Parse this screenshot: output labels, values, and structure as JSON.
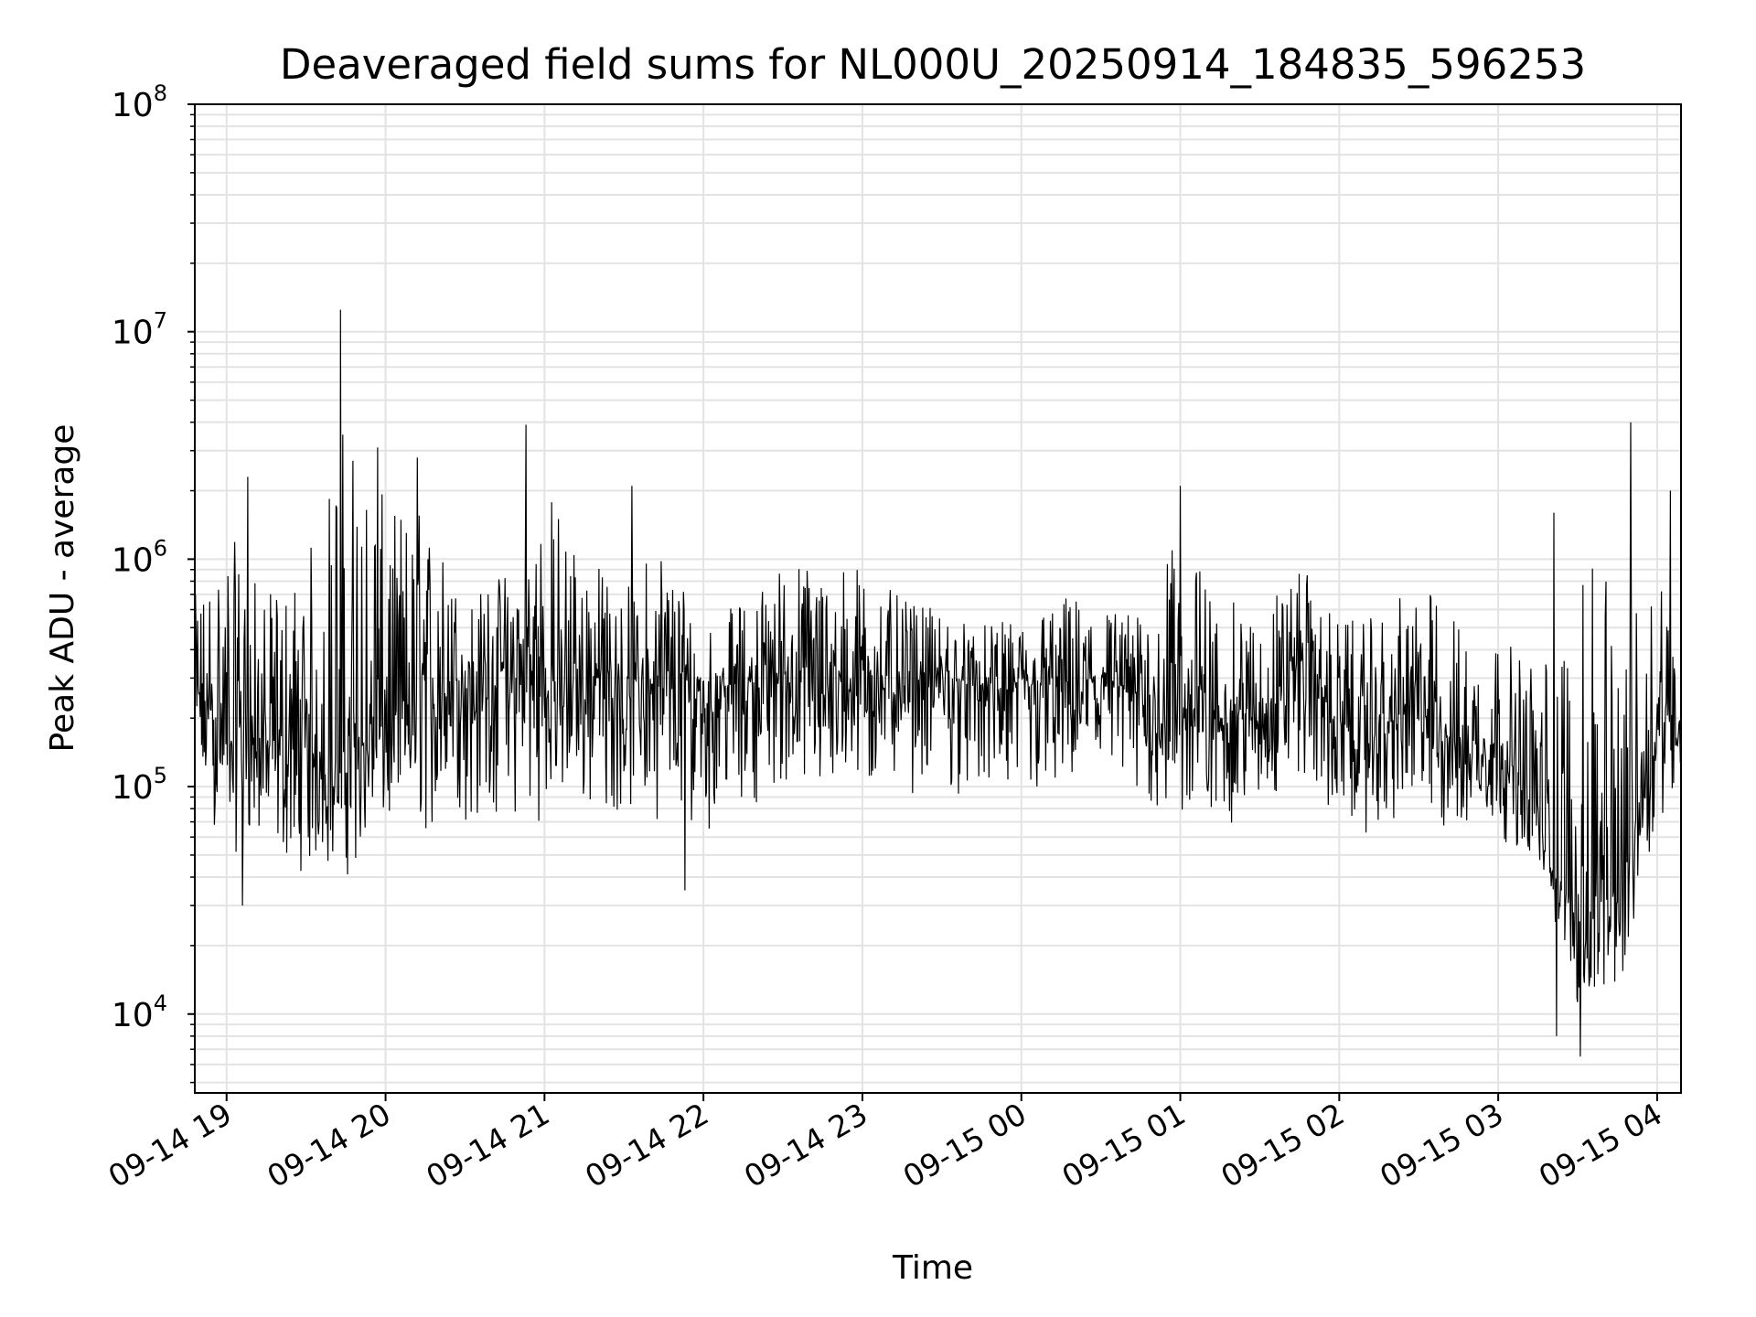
{
  "chart_data": {
    "type": "line",
    "title": "Deaveraged field sums for NL000U_20250914_184835_596253",
    "xlabel": "Time",
    "ylabel": "Peak ADU - average",
    "yscale": "log",
    "ylim": [
      4500,
      100000000
    ],
    "xlim": [
      "2025-09-14 18:48",
      "2025-09-15 04:09"
    ],
    "grid": true,
    "x_tick_labels": [
      "09-14 19",
      "09-14 20",
      "09-14 21",
      "09-14 22",
      "09-14 23",
      "09-15 00",
      "09-15 01",
      "09-15 02",
      "09-15 03",
      "09-15 04"
    ],
    "x_ticks": [
      "2025-09-14 19:00",
      "2025-09-14 20:00",
      "2025-09-14 21:00",
      "2025-09-14 22:00",
      "2025-09-14 23:00",
      "2025-09-15 00:00",
      "2025-09-15 01:00",
      "2025-09-15 02:00",
      "2025-09-15 03:00",
      "2025-09-15 04:00"
    ],
    "y_tick_labels": [
      {
        "base": "10",
        "exp": "4"
      },
      {
        "base": "10",
        "exp": "5"
      },
      {
        "base": "10",
        "exp": "6"
      },
      {
        "base": "10",
        "exp": "7"
      },
      {
        "base": "10",
        "exp": "8"
      }
    ],
    "y_ticks": [
      10000,
      100000,
      1000000,
      10000000,
      100000000
    ],
    "line_color": "#000000",
    "series": [
      {
        "x": [
          "2025-09-14 18:48",
          "2025-09-14 19:00",
          "2025-09-14 19:15",
          "2025-09-14 19:30",
          "2025-09-14 19:45",
          "2025-09-14 20:00",
          "2025-09-14 20:15",
          "2025-09-14 20:30",
          "2025-09-14 20:45",
          "2025-09-14 21:00",
          "2025-09-14 21:15",
          "2025-09-14 21:30",
          "2025-09-14 21:45",
          "2025-09-14 22:00",
          "2025-09-14 22:15",
          "2025-09-14 22:30",
          "2025-09-14 22:45",
          "2025-09-14 23:00",
          "2025-09-14 23:15",
          "2025-09-14 23:30",
          "2025-09-14 23:45",
          "2025-09-15 00:00",
          "2025-09-15 00:15",
          "2025-09-15 00:30",
          "2025-09-15 00:45",
          "2025-09-15 01:00",
          "2025-09-15 01:15",
          "2025-09-15 01:30",
          "2025-09-15 01:45",
          "2025-09-15 02:00",
          "2025-09-15 02:15",
          "2025-09-15 02:30",
          "2025-09-15 02:45",
          "2025-09-15 03:00",
          "2025-09-15 03:15",
          "2025-09-15 03:30",
          "2025-09-15 03:45",
          "2025-09-15 04:00",
          "2025-09-15 04:09"
        ],
        "y": [
          250000,
          180000,
          160000,
          140000,
          130000,
          190000,
          260000,
          300000,
          320000,
          280000,
          300000,
          300000,
          270000,
          260000,
          290000,
          320000,
          280000,
          300000,
          310000,
          300000,
          280000,
          270000,
          280000,
          300000,
          250000,
          220000,
          210000,
          200000,
          400000,
          180000,
          170000,
          250000,
          150000,
          150000,
          70000,
          25000,
          30000,
          200000,
          210000
        ],
        "y_min": [
          80000,
          50000,
          45000,
          40000,
          38000,
          55000,
          55000,
          60000,
          60000,
          70000,
          70000,
          70000,
          70000,
          60000,
          80000,
          90000,
          80000,
          80000,
          90000,
          90000,
          80000,
          70000,
          80000,
          80000,
          70000,
          60000,
          60000,
          70000,
          100000,
          60000,
          60000,
          60000,
          50000,
          60000,
          40000,
          10000,
          10000,
          70000,
          90000
        ],
        "y_max": [
          900000,
          2300000,
          1000000,
          1600000,
          12500000,
          3100000,
          2800000,
          800000,
          1200000,
          3900000,
          1600000,
          900000,
          2100000,
          650000,
          800000,
          1350000,
          1400000,
          1300000,
          800000,
          700000,
          600000,
          650000,
          900000,
          800000,
          700000,
          2100000,
          900000,
          800000,
          1200000,
          700000,
          750000,
          1100000,
          800000,
          600000,
          550000,
          1600000,
          4000000,
          2000000,
          600000
        ],
        "peaks": [
          {
            "x": "2025-09-14 19:08",
            "y": 2300000
          },
          {
            "x": "2025-09-14 19:43",
            "y": 12500000
          },
          {
            "x": "2025-09-14 19:57",
            "y": 3100000
          },
          {
            "x": "2025-09-14 20:12",
            "y": 2800000
          },
          {
            "x": "2025-09-14 20:53",
            "y": 3900000
          },
          {
            "x": "2025-09-14 21:33",
            "y": 2100000
          },
          {
            "x": "2025-09-15 01:00",
            "y": 2100000
          },
          {
            "x": "2025-09-15 03:21",
            "y": 1600000
          },
          {
            "x": "2025-09-15 03:50",
            "y": 4000000
          },
          {
            "x": "2025-09-15 04:05",
            "y": 2000000
          }
        ],
        "troughs": [
          {
            "x": "2025-09-15 03:31",
            "y": 6500
          },
          {
            "x": "2025-09-15 03:22",
            "y": 8000
          },
          {
            "x": "2025-09-14 19:06",
            "y": 30000
          },
          {
            "x": "2025-09-14 21:53",
            "y": 35000
          }
        ]
      }
    ]
  }
}
